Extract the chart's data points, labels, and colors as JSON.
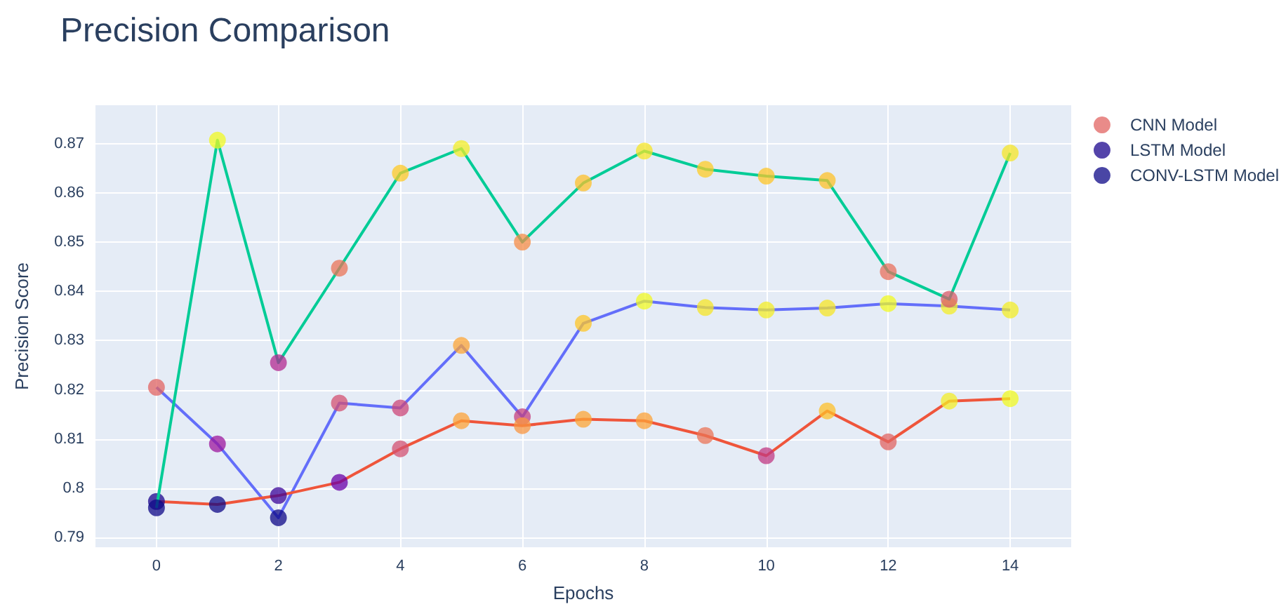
{
  "chart_data": {
    "type": "line",
    "title": "Precision Comparison",
    "xlabel": "Epochs",
    "ylabel": "Precision Score",
    "x": [
      0,
      1,
      2,
      3,
      4,
      5,
      6,
      7,
      8,
      9,
      10,
      11,
      12,
      13,
      14
    ],
    "xlim": [
      -1,
      15
    ],
    "xticks": [
      0,
      2,
      4,
      6,
      8,
      10,
      12,
      14
    ],
    "ylim": [
      0.788,
      0.8778
    ],
    "yticks": [
      0.79,
      0.8,
      0.81,
      0.82,
      0.83,
      0.84,
      0.85,
      0.86,
      0.87
    ],
    "grid": true,
    "legend": "top right",
    "marker": "circle",
    "line_style": "solid",
    "series": [
      {
        "name": "CNN Model",
        "color": "#636efa",
        "values": [
          0.8205,
          0.809,
          0.794,
          0.8173,
          0.8163,
          0.829,
          0.8145,
          0.8335,
          0.838,
          0.8367,
          0.8362,
          0.8366,
          0.8375,
          0.837,
          0.8362
        ],
        "colors": [
          "#e16462",
          "#9c179e",
          "#0d0887",
          "#d35171",
          "#cc4778",
          "#fca636",
          "#c5407e",
          "#fdc527",
          "#f0f921",
          "#f5e626",
          "#f3ee27",
          "#f5e626",
          "#f0f921",
          "#f3ee27",
          "#f3ee27"
        ]
      },
      {
        "name": "LSTM Model",
        "color": "#ef553b",
        "values": [
          0.7973,
          0.7967,
          0.7985,
          0.8012,
          0.808,
          0.8137,
          0.8127,
          0.814,
          0.8137,
          0.8107,
          0.8066,
          0.8157,
          0.8094,
          0.8177,
          0.8182
        ],
        "colors": [
          "#1b068d",
          "#0d0887",
          "#3a049a",
          "#6a00a8",
          "#d35171",
          "#fca338",
          "#f89540",
          "#fca636",
          "#fca338",
          "#ea7457",
          "#c03a83",
          "#fec029",
          "#e06461",
          "#f3ee27",
          "#f0f921"
        ]
      },
      {
        "name": "CONV-LSTM Model",
        "color": "#00cc96",
        "values": [
          0.796,
          0.8707,
          0.8255,
          0.8447,
          0.864,
          0.869,
          0.85,
          0.862,
          0.8685,
          0.8648,
          0.8634,
          0.8625,
          0.844,
          0.8384,
          0.8681
        ],
        "colors": [
          "#0d0887",
          "#f0f921",
          "#b12a90",
          "#ea7457",
          "#fdc926",
          "#f3ee27",
          "#f58c46",
          "#fec029",
          "#f5e626",
          "#fdcc25",
          "#fdc527",
          "#fec228",
          "#e8705c",
          "#db5c68",
          "#f5e626"
        ]
      }
    ]
  }
}
